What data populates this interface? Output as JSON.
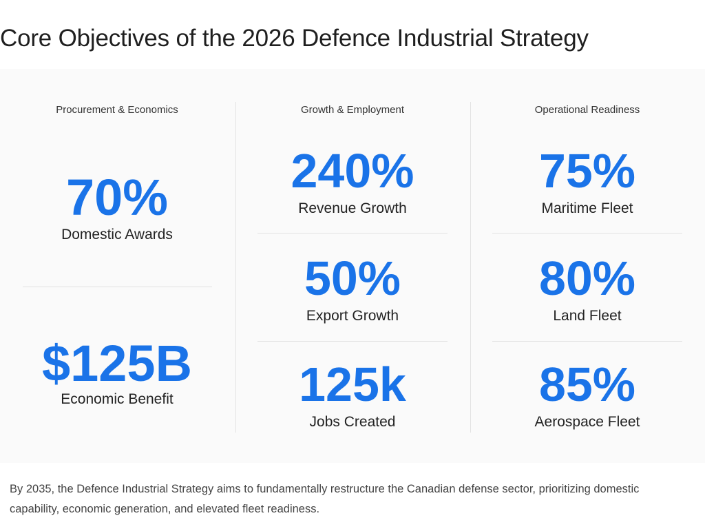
{
  "title": "Core Objectives of the 2026 Defence Industrial Strategy",
  "accent_color": "#1a73e8",
  "columns": [
    {
      "header": "Procurement & Economics",
      "metrics": [
        {
          "value": "70%",
          "label": "Domestic Awards"
        },
        {
          "value": "$125B",
          "label": "Economic Benefit"
        }
      ]
    },
    {
      "header": "Growth & Employment",
      "metrics": [
        {
          "value": "240%",
          "label": "Revenue Growth"
        },
        {
          "value": "50%",
          "label": "Export Growth"
        },
        {
          "value": "125k",
          "label": "Jobs Created"
        }
      ]
    },
    {
      "header": "Operational Readiness",
      "metrics": [
        {
          "value": "75%",
          "label": "Maritime Fleet"
        },
        {
          "value": "80%",
          "label": "Land Fleet"
        },
        {
          "value": "85%",
          "label": "Aerospace Fleet"
        }
      ]
    }
  ],
  "caption": "By 2035, the Defence Industrial Strategy aims to fundamentally restructure the Canadian defense sector, prioritizing domestic capability, economic generation, and elevated fleet readiness."
}
